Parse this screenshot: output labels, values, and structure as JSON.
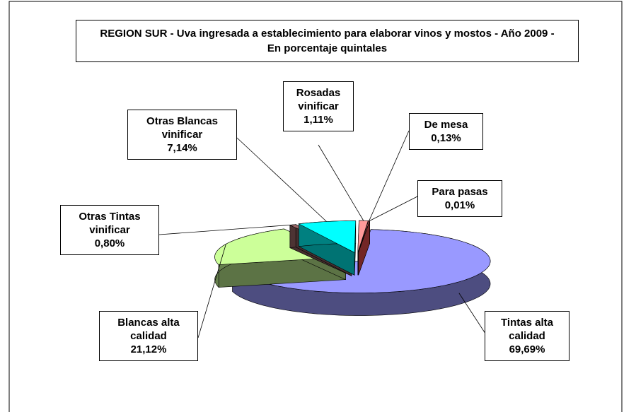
{
  "chart_data": {
    "type": "pie",
    "title": "REGION SUR -  Uva ingresada a establecimiento para elaborar vinos y mostos - Año 2009 - En porcentaje quintales",
    "categories": [
      "Tintas alta calidad",
      "Blancas alta calidad",
      "Otras Tintas vinificar",
      "Otras Blancas vinificar",
      "Rosadas vinificar",
      "De mesa",
      "Para pasas"
    ],
    "values": [
      69.69,
      21.12,
      0.8,
      7.14,
      1.11,
      0.13,
      0.01
    ],
    "value_labels": [
      "69,69%",
      "21,12%",
      "0,80%",
      "7,14%",
      "1,11%",
      "0,13%",
      "0,01%"
    ],
    "colors": [
      "#9999ff",
      "#ccff99",
      "#996666",
      "#00ffff",
      "#ff9999",
      "#ff7777",
      "#ff5555"
    ]
  }
}
